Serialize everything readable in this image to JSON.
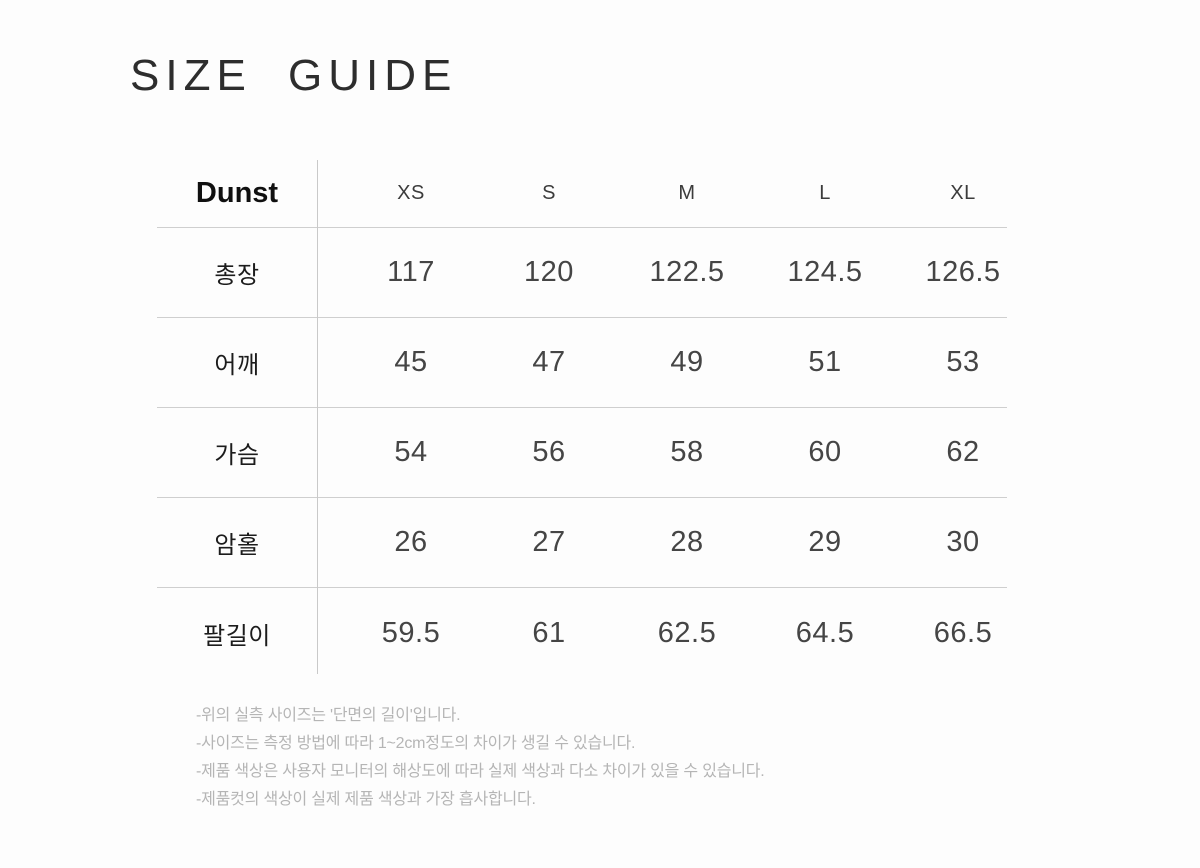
{
  "page": {
    "title": "SIZE GUIDE"
  },
  "size_table": {
    "brand": "Dunst",
    "size_headers": [
      "XS",
      "S",
      "M",
      "L",
      "XL"
    ],
    "rows": [
      {
        "label": "총장",
        "values": [
          "117",
          "120",
          "122.5",
          "124.5",
          "126.5"
        ]
      },
      {
        "label": "어깨",
        "values": [
          "45",
          "47",
          "49",
          "51",
          "53"
        ]
      },
      {
        "label": "가슴",
        "values": [
          "54",
          "56",
          "58",
          "60",
          "62"
        ]
      },
      {
        "label": "암홀",
        "values": [
          "26",
          "27",
          "28",
          "29",
          "30"
        ]
      },
      {
        "label": "팔길이",
        "values": [
          "59.5",
          "61",
          "62.5",
          "64.5",
          "66.5"
        ]
      }
    ]
  },
  "notes": [
    "-위의 실측 사이즈는 '단면의 길이'입니다.",
    "-사이즈는 측정 방법에 따라 1~2cm정도의 차이가 생길 수 있습니다.",
    "-제품 색상은 사용자 모니터의 해상도에 따라 실제 색상과 다소 차이가 있을 수 있습니다.",
    "-제품컷의 색상이 실제 제품 색상과 가장 흡사합니다."
  ],
  "colors": {
    "background": "#fdfdfd",
    "title_text": "#2d2d2d",
    "brand_text": "#101010",
    "number_text": "#454545",
    "table_line": "#cfcfcf",
    "note_text": "#b5b5b5"
  }
}
